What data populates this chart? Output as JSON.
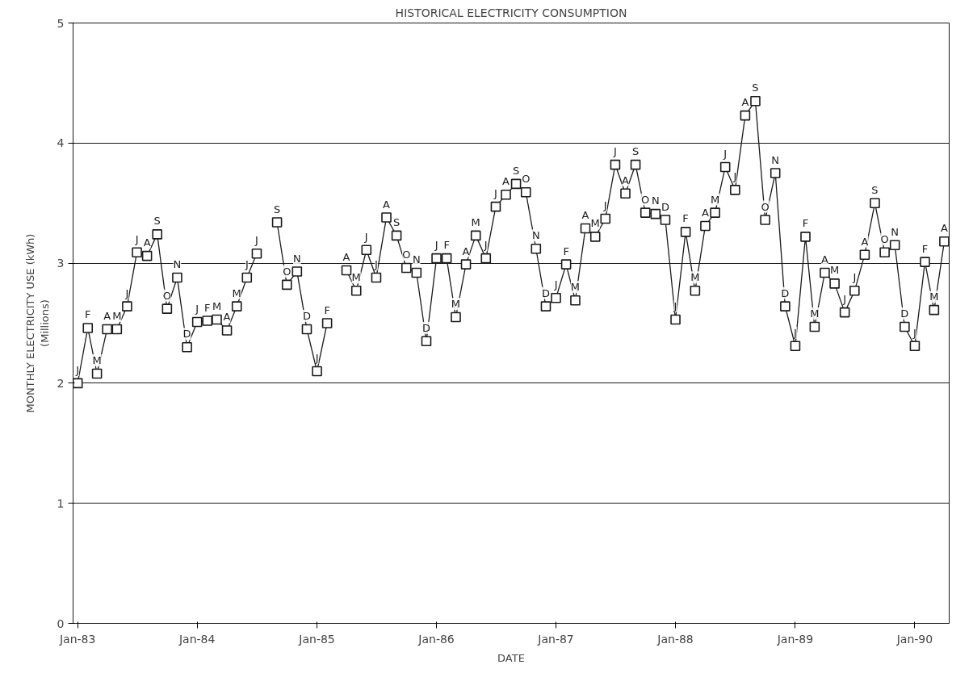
{
  "chart_data": {
    "type": "line",
    "title": "HISTORICAL ELECTRICITY CONSUMPTION",
    "xlabel": "DATE",
    "ylabel": "MONTHLY ELECTRICITY USE (kWh)\n(Millions)",
    "x": [
      "1983-01",
      "1983-02",
      "1983-03",
      "1983-04",
      "1983-05",
      "1983-06",
      "1983-07",
      "1983-08",
      "1983-09",
      "1983-10",
      "1983-11",
      "1983-12",
      "1984-01",
      "1984-02",
      "1984-03",
      "1984-04",
      "1984-05",
      "1984-06",
      "1984-07",
      "1984-08",
      "1984-09",
      "1984-10",
      "1984-11",
      "1984-12",
      "1985-01",
      "1985-02",
      "1985-03",
      "1985-04",
      "1985-05",
      "1985-06",
      "1985-07",
      "1985-08",
      "1985-09",
      "1985-10",
      "1985-11",
      "1985-12",
      "1986-01",
      "1986-02",
      "1986-03",
      "1986-04",
      "1986-05",
      "1986-06",
      "1986-07",
      "1986-08",
      "1986-09",
      "1986-10",
      "1986-11",
      "1986-12",
      "1987-01",
      "1987-02",
      "1987-03",
      "1987-04",
      "1987-05",
      "1987-06",
      "1987-07",
      "1987-08",
      "1987-09",
      "1987-10",
      "1987-11",
      "1987-12",
      "1988-01",
      "1988-02",
      "1988-03",
      "1988-04",
      "1988-05",
      "1988-06",
      "1988-07",
      "1988-08",
      "1988-09",
      "1988-10",
      "1988-11",
      "1988-12",
      "1989-01",
      "1989-02",
      "1989-03",
      "1989-04",
      "1989-05",
      "1989-06",
      "1989-07",
      "1989-08",
      "1989-09",
      "1989-10",
      "1989-11",
      "1989-12",
      "1990-01",
      "1990-02",
      "1990-03",
      "1990-04"
    ],
    "series": [
      {
        "color": "#1a1a1a",
        "values": [
          2.0,
          2.46,
          2.08,
          2.45,
          2.45,
          2.64,
          3.09,
          3.06,
          3.24,
          2.62,
          2.88,
          2.3,
          2.51,
          2.52,
          2.53,
          2.44,
          2.64,
          2.88,
          3.08,
          null,
          3.34,
          2.82,
          2.93,
          2.45,
          2.1,
          2.5,
          null,
          2.94,
          2.77,
          3.11,
          2.88,
          3.38,
          3.23,
          2.96,
          2.92,
          2.35,
          3.04,
          3.04,
          2.55,
          2.99,
          3.23,
          3.04,
          3.47,
          3.57,
          3.66,
          3.59,
          3.12,
          2.64,
          2.71,
          2.99,
          2.69,
          3.29,
          3.22,
          3.37,
          3.82,
          3.58,
          3.82,
          3.42,
          3.41,
          3.36,
          2.53,
          3.26,
          2.77,
          3.31,
          3.42,
          3.8,
          3.61,
          4.23,
          4.35,
          3.36,
          3.75,
          2.64,
          2.31,
          3.22,
          2.47,
          2.92,
          2.83,
          2.59,
          2.77,
          3.07,
          3.5,
          3.09,
          3.15,
          2.47,
          2.31,
          3.01,
          2.61,
          3.18
        ],
        "value_labels": [
          "J",
          "F",
          "M",
          "A",
          "M",
          "J",
          "J",
          "A",
          "S",
          "O",
          "N",
          "D",
          "J",
          "F",
          "M",
          "A",
          "M",
          "J",
          "J",
          null,
          "S",
          "O",
          "N",
          "D",
          "J",
          "F",
          null,
          "A",
          "M",
          "J",
          "J",
          "A",
          "S",
          "O",
          "N",
          "D",
          "J",
          "F",
          "M",
          "A",
          "M",
          "J",
          "J",
          "A",
          "S",
          "O",
          "N",
          "D",
          "J",
          "F",
          "M",
          "A",
          "M",
          "J",
          "J",
          "A",
          "S",
          "O",
          "N",
          "D",
          "J",
          "F",
          "M",
          "A",
          "M",
          "J",
          "J",
          "A",
          "S",
          "O",
          "N",
          "D",
          "J",
          "F",
          "M",
          "A",
          "M",
          "J",
          "J",
          "A",
          "S",
          "O",
          "N",
          "D",
          "J",
          "F",
          "M",
          "A"
        ]
      }
    ],
    "xlim": [
      "1982-12-18",
      "1990-04-16"
    ],
    "xticks": [
      {
        "value": "1983-01",
        "label": "Jan-83"
      },
      {
        "value": "1984-01",
        "label": "Jan-84"
      },
      {
        "value": "1985-01",
        "label": "Jan-85"
      },
      {
        "value": "1986-01",
        "label": "Jan-86"
      },
      {
        "value": "1987-01",
        "label": "Jan-87"
      },
      {
        "value": "1988-01",
        "label": "Jan-88"
      },
      {
        "value": "1989-01",
        "label": "Jan-89"
      },
      {
        "value": "1990-01",
        "label": "Jan-90"
      }
    ],
    "ylim": [
      0,
      5
    ],
    "yticks": [
      0,
      1,
      2,
      3,
      4,
      5
    ],
    "grid": "y",
    "marker": "square",
    "line_style": "solid"
  }
}
